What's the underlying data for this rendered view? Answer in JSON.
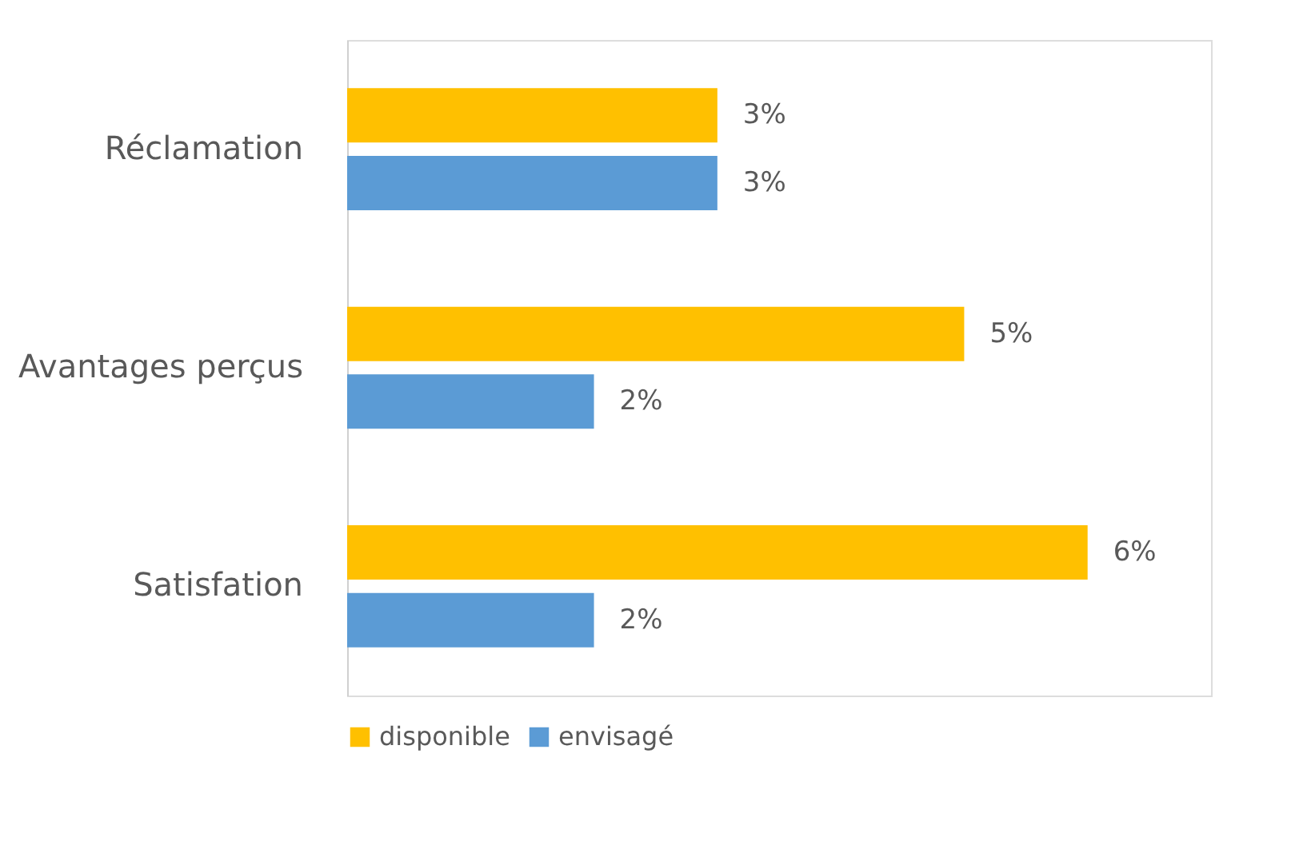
{
  "chart_data": {
    "type": "bar",
    "orientation": "horizontal",
    "categories": [
      "Réclamation",
      "Avantages perçus",
      "Satisfation"
    ],
    "series": [
      {
        "name": "disponible",
        "color": "#ffc000",
        "values": [
          3,
          5,
          6
        ],
        "value_labels": [
          "3%",
          "5%",
          "6%"
        ]
      },
      {
        "name": "envisagé",
        "color": "#5b9bd5",
        "values": [
          3,
          2,
          2
        ],
        "value_labels": [
          "3%",
          "2%",
          "2%"
        ]
      }
    ],
    "xlim": [
      0,
      7
    ],
    "tick_labels": "y",
    "grid": false,
    "legend": "bottom"
  }
}
